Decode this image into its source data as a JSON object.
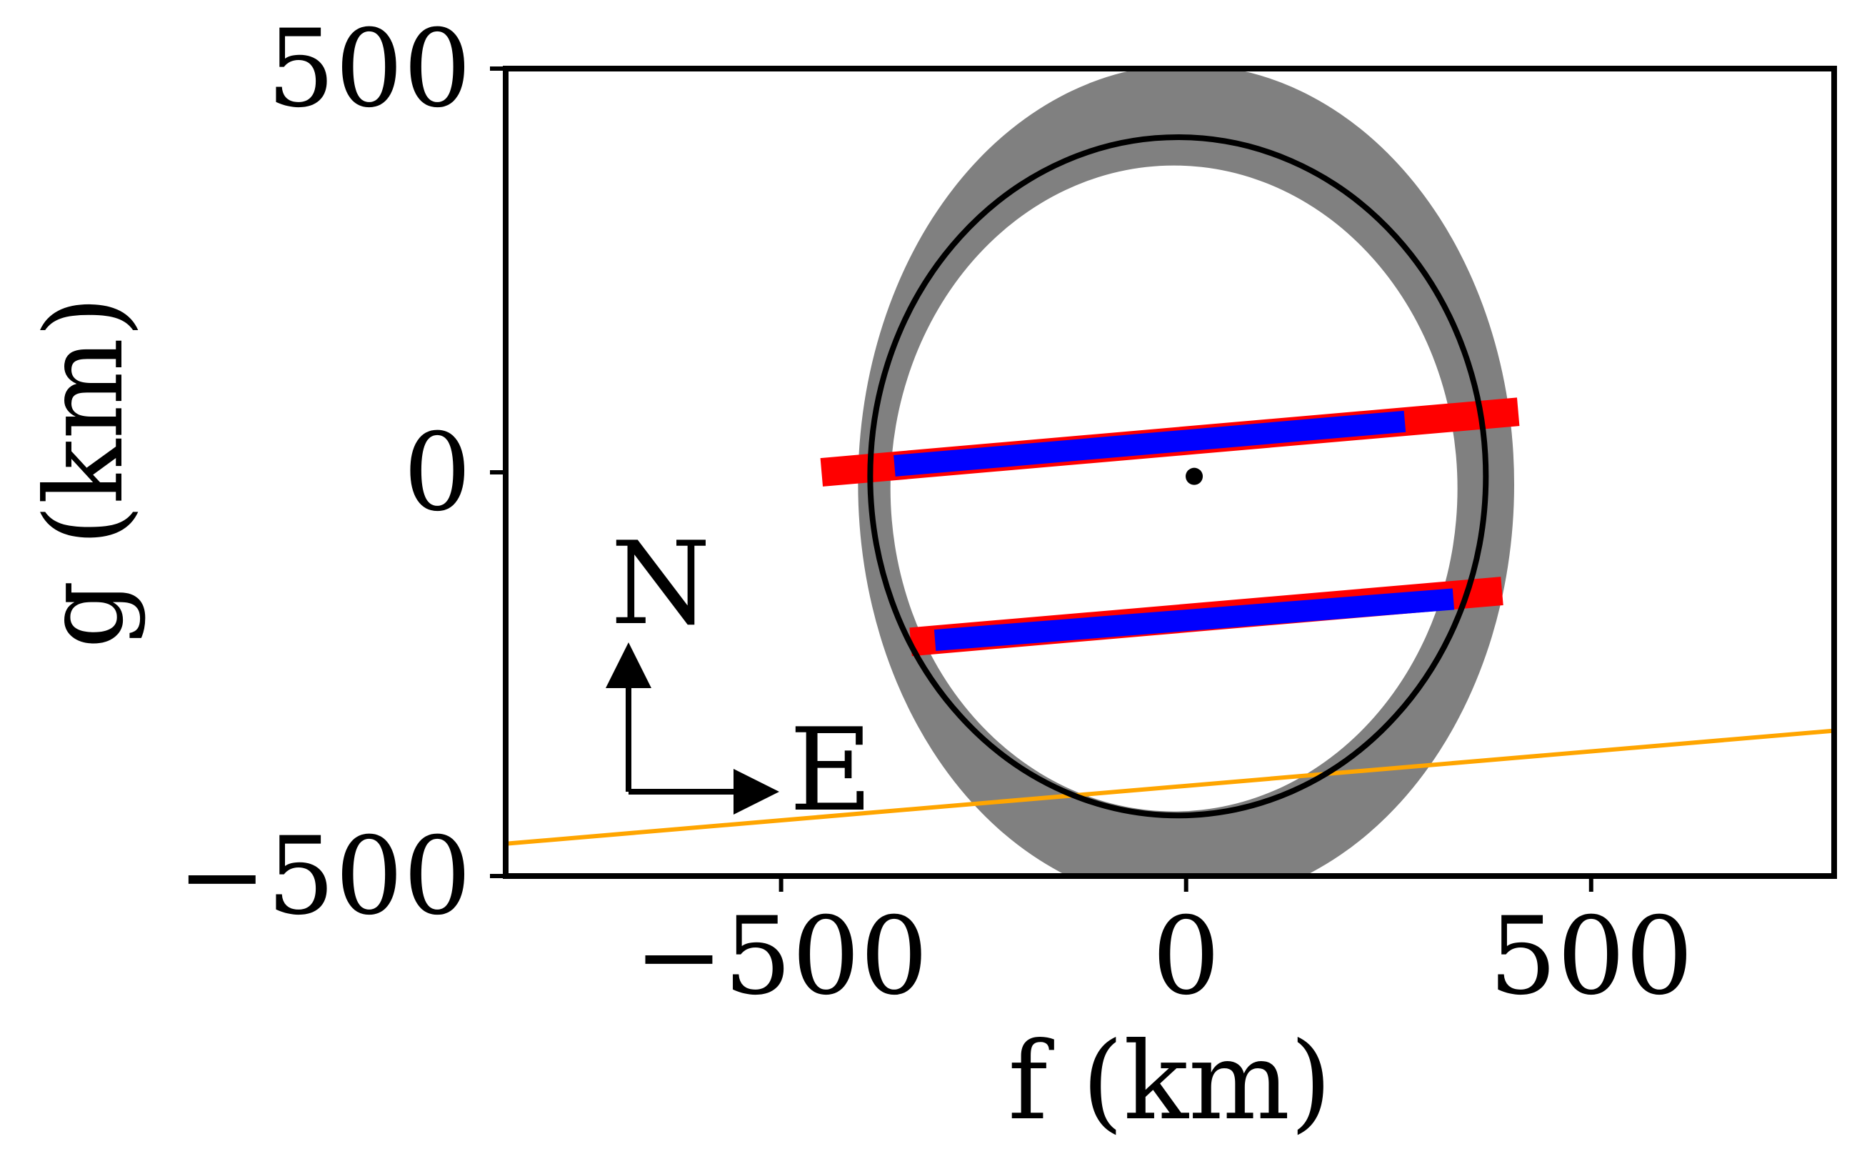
{
  "chart_data": {
    "type": "scatter",
    "title": "",
    "xlabel": "f (km)",
    "ylabel": "g (km)",
    "xlim": [
      -840,
      800
    ],
    "ylim": [
      -500,
      500
    ],
    "xticks": [
      {
        "value": -500,
        "label": "−500"
      },
      {
        "value": 0,
        "label": "0"
      },
      {
        "value": 500,
        "label": "500"
      }
    ],
    "yticks": [
      {
        "value": -500,
        "label": "−500"
      },
      {
        "value": 0,
        "label": "0"
      },
      {
        "value": 500,
        "label": "500"
      }
    ],
    "grid": false,
    "legend": "none",
    "ellipse_fit": {
      "center": [
        -10,
        -5
      ],
      "semi_major_axis": 420,
      "semi_minor_axis": 380,
      "color": "#000000"
    },
    "uncertainty_band": {
      "outer": {
        "center": [
          0,
          -15
        ],
        "a": 520,
        "b": 405
      },
      "inner": {
        "center": [
          -15,
          -20
        ],
        "a": 400,
        "b": 350
      },
      "color": "#808080"
    },
    "center_point": {
      "f": 10,
      "g": -5
    },
    "chords": [
      {
        "name": "chord-upper",
        "start": [
          -450,
          0
        ],
        "end": [
          410,
          75
        ],
        "positive": [
          [
            -360,
            8
          ],
          [
            270,
            63
          ]
        ],
        "color_positive": "#0000ff",
        "color_error": "#ff0000"
      },
      {
        "name": "chord-lower",
        "start": [
          -340,
          -210
        ],
        "end": [
          390,
          -147
        ],
        "positive": [
          [
            -310,
            -208
          ],
          [
            330,
            -157
          ]
        ],
        "color_positive": "#0000ff",
        "color_error": "#ff0000"
      }
    ],
    "negative_chord": {
      "start": [
        -840,
        -460
      ],
      "end": [
        800,
        -320
      ],
      "color": "#ffa500"
    },
    "compass": {
      "north": "N",
      "east": "E"
    }
  }
}
